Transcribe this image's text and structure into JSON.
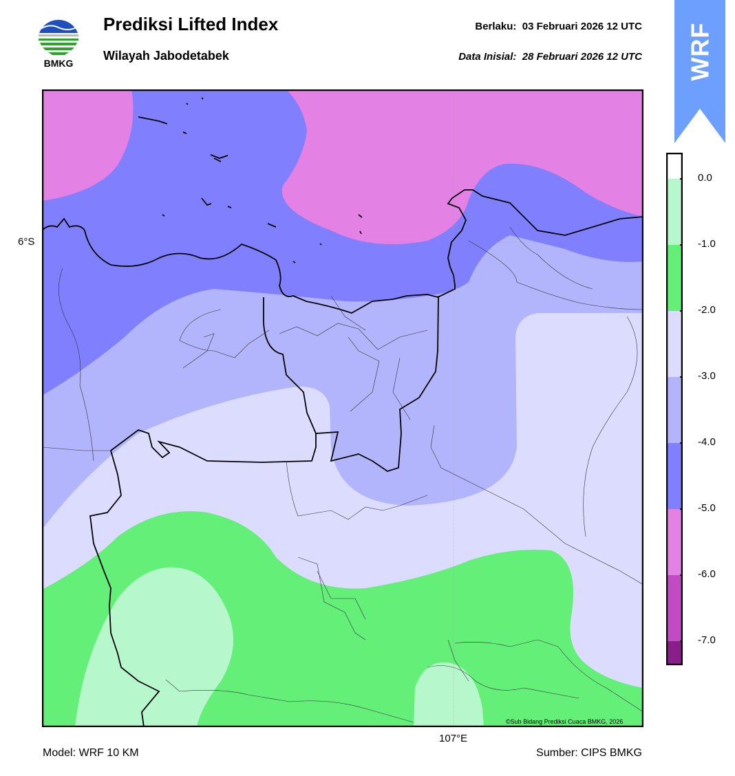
{
  "header": {
    "logo_text": "BMKG",
    "title": "Prediksi Lifted Index",
    "subtitle": "Wilayah Jabodetabek",
    "valid_label": "Berlaku:",
    "valid_value": "03 Februari 2026 12 UTC",
    "init_label": "Data Inisial:",
    "init_value": "28 Februari 2026 12 UTC",
    "ribbon_text": "WRF"
  },
  "map": {
    "lat_label": "6°S",
    "lon_label": "107°E",
    "copyright": "©Sub Bidang Prediksi Cuaca BMKG, 2026"
  },
  "colorbar": {
    "ticks": [
      "0.0",
      "-1.0",
      "-2.0",
      "-3.0",
      "-4.0",
      "-5.0",
      "-6.0",
      "-7.0"
    ],
    "colors": {
      "above_0": "#ffffff",
      "0_to_-1": "#b6f8cc",
      "-1_to_-2": "#64ef78",
      "-2_to_-3": "#dcdcfe",
      "-3_to_-4": "#b2b4fc",
      "-4_to_-5": "#8080ff",
      "-5_to_-6": "#e381e5",
      "-6_to_-7": "#c04bc2",
      "below_-7": "#8a1e8a"
    }
  },
  "footer": {
    "model": "Model: WRF 10 KM",
    "source": "Sumber: CIPS BMKG"
  }
}
